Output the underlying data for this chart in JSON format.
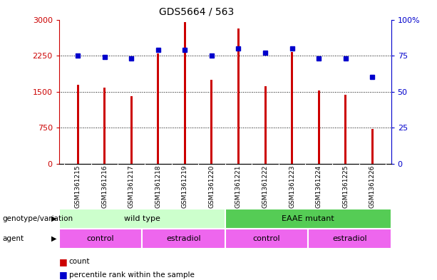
{
  "title": "GDS5664 / 563",
  "samples": [
    "GSM1361215",
    "GSM1361216",
    "GSM1361217",
    "GSM1361218",
    "GSM1361219",
    "GSM1361220",
    "GSM1361221",
    "GSM1361222",
    "GSM1361223",
    "GSM1361224",
    "GSM1361225",
    "GSM1361226"
  ],
  "counts": [
    1650,
    1580,
    1400,
    2300,
    2950,
    1750,
    2820,
    1620,
    2330,
    1530,
    1440,
    720
  ],
  "percentile": [
    75,
    74,
    73,
    79,
    79,
    75,
    80,
    77,
    80,
    73,
    73,
    60
  ],
  "bar_color": "#cc0000",
  "dot_color": "#0000cc",
  "ylim_left": [
    0,
    3000
  ],
  "ylim_right": [
    0,
    100
  ],
  "yticks_left": [
    0,
    750,
    1500,
    2250,
    3000
  ],
  "yticks_right": [
    0,
    25,
    50,
    75,
    100
  ],
  "ytick_labels_left": [
    "0",
    "750",
    "1500",
    "2250",
    "3000"
  ],
  "ytick_labels_right": [
    "0",
    "25",
    "50",
    "75",
    "100%"
  ],
  "grid_values": [
    750,
    1500,
    2250
  ],
  "genotype_groups": [
    {
      "label": "wild type",
      "start": 0,
      "end": 6,
      "color": "#ccffcc"
    },
    {
      "label": "EAAE mutant",
      "start": 6,
      "end": 12,
      "color": "#55cc55"
    }
  ],
  "agent_groups": [
    {
      "label": "control",
      "start": 0,
      "end": 3,
      "color": "#ee66ee"
    },
    {
      "label": "estradiol",
      "start": 3,
      "end": 6,
      "color": "#ee66ee"
    },
    {
      "label": "control",
      "start": 6,
      "end": 9,
      "color": "#ee66ee"
    },
    {
      "label": "estradiol",
      "start": 9,
      "end": 12,
      "color": "#ee66ee"
    }
  ],
  "legend_count_label": "count",
  "legend_pct_label": "percentile rank within the sample",
  "genotype_label": "genotype/variation",
  "agent_label": "agent",
  "tick_area_color": "#cccccc",
  "bar_width": 0.08
}
